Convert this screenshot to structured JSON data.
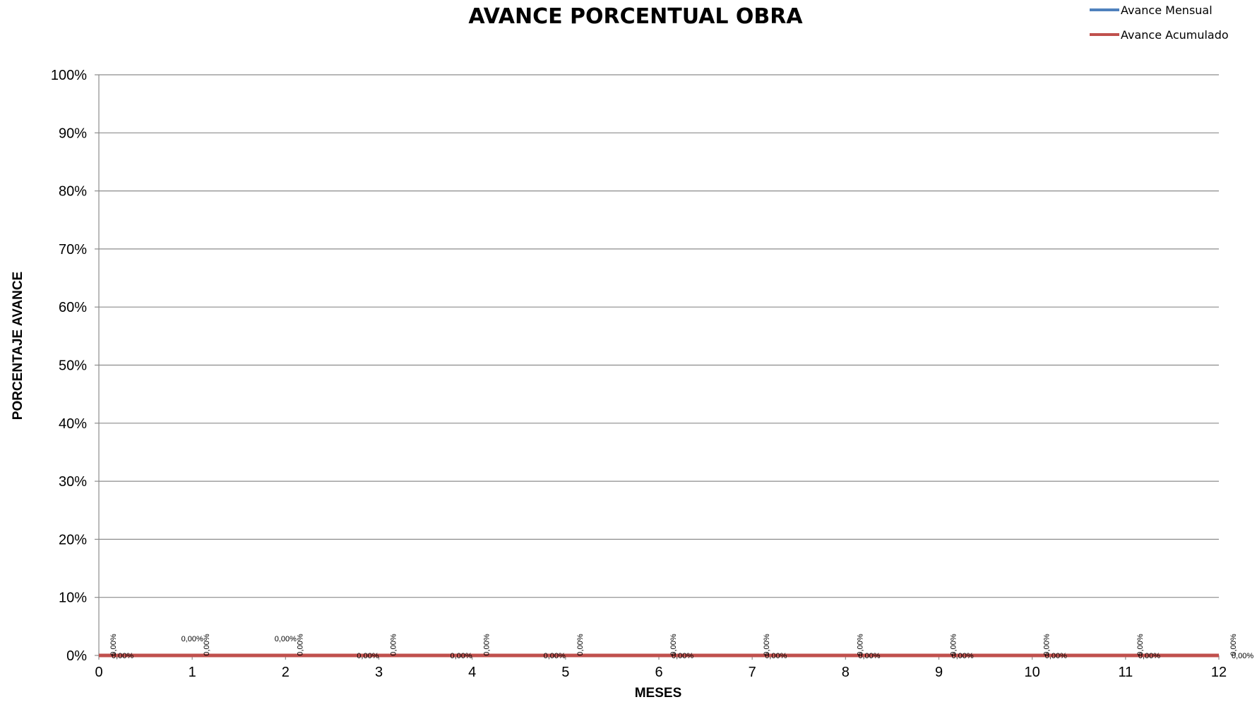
{
  "chart_data": {
    "type": "line",
    "title": "AVANCE PORCENTUAL OBRA",
    "xlabel": "MESES",
    "ylabel": "PORCENTAJE AVANCE",
    "x": [
      0,
      1,
      2,
      3,
      4,
      5,
      6,
      7,
      8,
      9,
      10,
      11,
      12
    ],
    "x_ticks": [
      "0",
      "1",
      "2",
      "3",
      "4",
      "5",
      "6",
      "7",
      "8",
      "9",
      "10",
      "11",
      "12"
    ],
    "y_ticks": [
      "0%",
      "10%",
      "20%",
      "30%",
      "40%",
      "50%",
      "60%",
      "70%",
      "80%",
      "90%",
      "100%"
    ],
    "xlim": [
      0,
      12
    ],
    "ylim": [
      0,
      100
    ],
    "grid": "horizontal",
    "legend_position": "top-right",
    "series": [
      {
        "name": "Avance Mensual",
        "color": "#4F81BD",
        "values": [
          0,
          0,
          0,
          0,
          0,
          0,
          0,
          0,
          0,
          0,
          0,
          0,
          0
        ],
        "labels": [
          "0,00%",
          "0,00%",
          "0,00%",
          "0,00%",
          "0,00%",
          "0,00%",
          "0,00%",
          "0,00%",
          "0,00%",
          "0,00%",
          "0,00%",
          "0,00%",
          "0,00%"
        ]
      },
      {
        "name": "Avance Acumulado",
        "color": "#C0504D",
        "values": [
          0,
          0,
          0,
          0,
          0,
          0,
          0,
          0,
          0,
          0,
          0,
          0,
          0
        ],
        "labels": [
          "0,00%",
          "0,00%",
          "0,00%",
          "0,00%",
          "0,00%",
          "0,00%",
          "0,00%",
          "0,00%",
          "0,00%",
          "0,00%",
          "0,00%",
          "0,00%",
          "0,00%"
        ]
      }
    ]
  }
}
